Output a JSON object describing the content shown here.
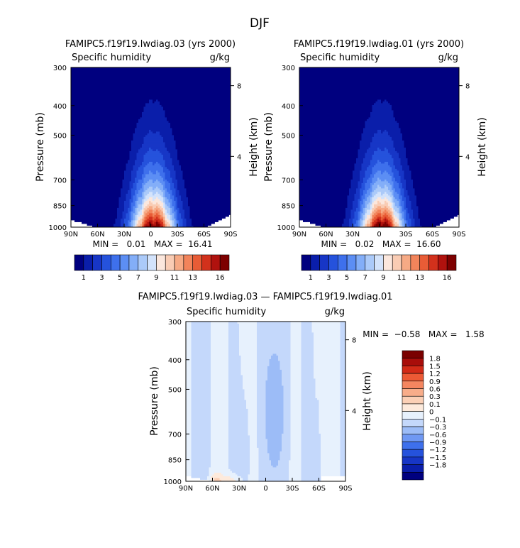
{
  "figure": {
    "title": "DJF"
  },
  "palettes": {
    "abs": [
      "#00007f",
      "#0a1eaa",
      "#1736c6",
      "#2552dc",
      "#3e70ec",
      "#5c8ef4",
      "#83aef8",
      "#abcaf9",
      "#d3e3fb",
      "#fbe7dd",
      "#f9ccb4",
      "#f6aa85",
      "#f2845b",
      "#e85c36",
      "#d2311c",
      "#b0120e",
      "#7d0000"
    ],
    "diff": [
      "#00007f",
      "#0a1eaa",
      "#1736c6",
      "#2552dc",
      "#3e70ec",
      "#6f98f3",
      "#9cbcf7",
      "#c4d8fb",
      "#e7f1fd",
      "#fdeadc",
      "#fbd0b6",
      "#f8ad8a",
      "#f58660",
      "#ec5a35",
      "#d22a17",
      "#a80d0a",
      "#7a0000"
    ]
  },
  "chart_data": [
    {
      "type": "contour",
      "title": "FAMIPC5.f19f19.lwdiag.03 (yrs 2000)",
      "subtitle_left": "Specific humidity",
      "subtitle_right": "g/kg",
      "xlabel": "",
      "ylabel": "Pressure (mb)",
      "y2label": "Height (km)",
      "x_ticks": [
        "90N",
        "60N",
        "30N",
        "0",
        "30S",
        "60S",
        "90S"
      ],
      "y_ticks": [
        "300",
        "400",
        "500",
        "700",
        "850",
        "1000"
      ],
      "y2_ticks": [
        "8",
        "4"
      ],
      "minmax": "MIN =   0.01   MAX =  16.41",
      "levels": [
        1,
        2,
        3,
        4,
        5,
        6,
        7,
        8,
        9,
        10,
        11,
        12,
        13,
        14,
        15,
        16
      ],
      "colorbar_labels": [
        "1",
        "3",
        "5",
        "7",
        "9",
        "11",
        "13",
        "16"
      ],
      "field": {
        "peak": 16.41,
        "max_lat": 0,
        "surface_max_p": 1000
      }
    },
    {
      "type": "contour",
      "title": "FAMIPC5.f19f19.lwdiag.01 (yrs 2000)",
      "subtitle_left": "Specific humidity",
      "subtitle_right": "g/kg",
      "xlabel": "",
      "ylabel": "Pressure (mb)",
      "y2label": "Height (km)",
      "x_ticks": [
        "90N",
        "60N",
        "30N",
        "0",
        "30S",
        "60S",
        "90S"
      ],
      "y_ticks": [
        "300",
        "400",
        "500",
        "700",
        "850",
        "1000"
      ],
      "y2_ticks": [
        "8",
        "4"
      ],
      "minmax": "MIN =   0.02   MAX =  16.60",
      "levels": [
        1,
        2,
        3,
        4,
        5,
        6,
        7,
        8,
        9,
        10,
        11,
        12,
        13,
        14,
        15,
        16
      ],
      "colorbar_labels": [
        "1",
        "3",
        "5",
        "7",
        "9",
        "11",
        "13",
        "16"
      ],
      "field": {
        "peak": 16.6,
        "max_lat": 0,
        "surface_max_p": 1000
      }
    },
    {
      "type": "contour",
      "title": "FAMIPC5.f19f19.lwdiag.03 — FAMIPC5.f19f19.lwdiag.01",
      "subtitle_left": "Specific humidity",
      "subtitle_right": "g/kg",
      "xlabel": "",
      "ylabel": "Pressure (mb)",
      "y2label": "Height (km)",
      "x_ticks": [
        "90N",
        "60N",
        "30N",
        "0",
        "30S",
        "60S",
        "90S"
      ],
      "y_ticks": [
        "300",
        "400",
        "500",
        "700",
        "850",
        "1000"
      ],
      "y2_ticks": [
        "8",
        "4"
      ],
      "minmax": "MIN =  −0.58   MAX =   1.58",
      "levels": [
        -1.8,
        -1.5,
        -1.2,
        -0.9,
        -0.6,
        -0.3,
        -0.1,
        0,
        0.1,
        0.3,
        0.6,
        0.9,
        1.2,
        1.5,
        1.8
      ],
      "colorbar_labels": [
        "1.8",
        "1.5",
        "1.2",
        "0.9",
        "0.6",
        "0.3",
        "0.1",
        "0",
        "−0.1",
        "−0.3",
        "−0.6",
        "−0.9",
        "−1.2",
        "−1.5",
        "−1.8"
      ]
    }
  ]
}
